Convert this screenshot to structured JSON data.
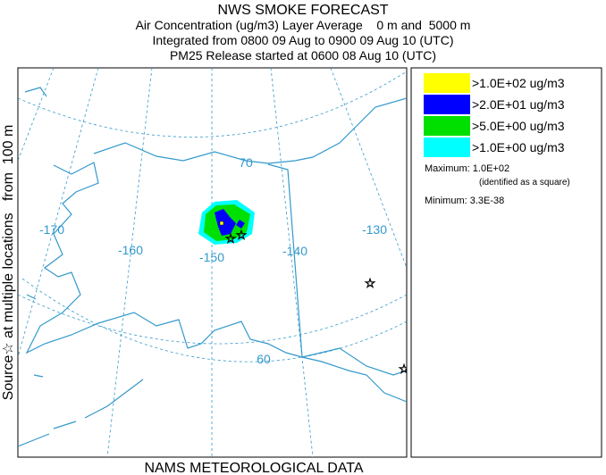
{
  "header": {
    "title": "NWS SMOKE FORECAST",
    "lines": [
      "Air Concentration (ug/m3) Layer Average    0 m and  5000 m",
      "Integrated from 0800 09 Aug to 0900 09 Aug 10 (UTC)",
      "PM25 Release started at 0600 08 Aug 10 (UTC)"
    ]
  },
  "side_label": "Source☆ at multiple locations   from  100 m",
  "footer": "NAMS METEOROLOGICAL DATA",
  "legend": {
    "items": [
      {
        "label": ">1.0E+02 ug/m3",
        "color": "#ffff00"
      },
      {
        "label": ">2.0E+01 ug/m3",
        "color": "#0000ff"
      },
      {
        "label": ">5.0E+00 ug/m3",
        "color": "#00e000"
      },
      {
        "label": ">1.0E+00 ug/m3",
        "color": "#00ffff"
      }
    ]
  },
  "stats": {
    "maximum": "Maximum: 1.0E+02",
    "note": "(identified as a square)",
    "minimum": "Minimum: 3.3E-38"
  },
  "map": {
    "labels": [
      "-170",
      "-160",
      "-150",
      "-140",
      "-130",
      "70",
      "60"
    ]
  }
}
